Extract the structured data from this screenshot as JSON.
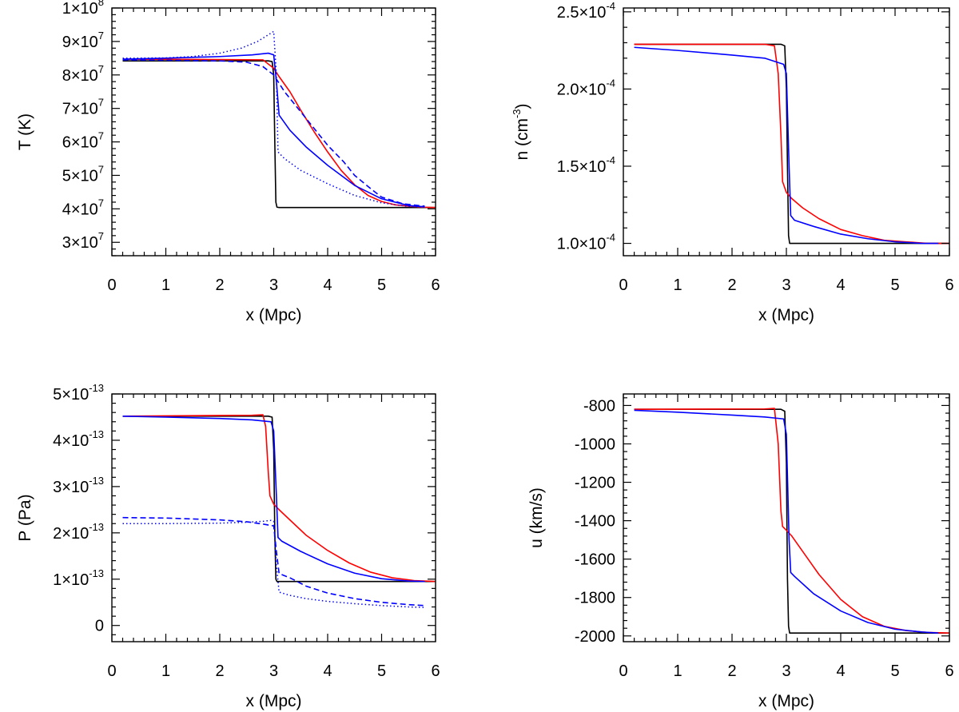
{
  "chart_data": [
    {
      "id": "temperature",
      "type": "line",
      "xlabel": "x (Mpc)",
      "ylabel": "T (K)",
      "xlim": [
        0,
        6
      ],
      "ylim": [
        26000000,
        100000000
      ],
      "xticks": [
        0,
        1,
        2,
        3,
        4,
        5,
        6
      ],
      "yticks": [
        {
          "value": 30000000,
          "mantissa": "3",
          "exp": "7"
        },
        {
          "value": 40000000,
          "mantissa": "4",
          "exp": "7"
        },
        {
          "value": 50000000,
          "mantissa": "5",
          "exp": "7"
        },
        {
          "value": 60000000,
          "mantissa": "6",
          "exp": "7"
        },
        {
          "value": 70000000,
          "mantissa": "7",
          "exp": "7"
        },
        {
          "value": 80000000,
          "mantissa": "8",
          "exp": "7"
        },
        {
          "value": 90000000,
          "mantissa": "9",
          "exp": "7"
        },
        {
          "value": 100000000,
          "mantissa": "1",
          "exp": "8"
        }
      ],
      "series": [
        {
          "name": "black solid",
          "color": "#000000",
          "style": "solid",
          "x": [
            0.2,
            2.9,
            2.97,
            3.0,
            3.02,
            3.04,
            3.06,
            3.1,
            6.0
          ],
          "y": [
            84200000,
            84200000,
            84000000,
            80000000,
            60000000,
            42000000,
            40500000,
            40400000,
            40400000
          ]
        },
        {
          "name": "red solid",
          "color": "#ff0000",
          "style": "solid",
          "x": [
            0.2,
            2.0,
            2.8,
            3.0,
            3.1,
            3.3,
            3.5,
            3.75,
            4.0,
            4.25,
            4.5,
            4.75,
            5.0,
            5.25,
            5.5,
            5.75,
            6.0
          ],
          "y": [
            84700000,
            84600000,
            84500000,
            82000000,
            79500000,
            75000000,
            69500000,
            63000000,
            57000000,
            51500000,
            47200000,
            44000000,
            42200000,
            41200000,
            40800000,
            40500000,
            40400000
          ]
        },
        {
          "name": "blue solid",
          "color": "#0000ff",
          "style": "solid",
          "x": [
            0.2,
            1.0,
            2.0,
            2.6,
            2.9,
            3.0,
            3.05,
            3.1,
            3.3,
            3.6,
            4.0,
            4.5,
            5.0,
            5.5,
            5.8
          ],
          "y": [
            84700000,
            85000000,
            85500000,
            86000000,
            86500000,
            86000000,
            78000000,
            68000000,
            63500000,
            58500000,
            53000000,
            47000000,
            43000000,
            41000000,
            40600000
          ]
        },
        {
          "name": "blue dashed",
          "color": "#0000ff",
          "style": "dashed",
          "x": [
            0.2,
            1.0,
            2.0,
            2.5,
            2.8,
            3.0,
            3.2,
            3.5,
            3.8,
            4.0,
            4.3,
            4.5,
            4.8,
            5.0,
            5.4,
            5.8
          ],
          "y": [
            84500000,
            84400000,
            84200000,
            83800000,
            82500000,
            80000000,
            75000000,
            69000000,
            63000000,
            59000000,
            54000000,
            50000000,
            46000000,
            43500000,
            41500000,
            40800000
          ]
        },
        {
          "name": "blue dotted",
          "color": "#0000ff",
          "style": "dotted",
          "x": [
            0.2,
            1.0,
            1.5,
            2.0,
            2.4,
            2.7,
            2.9,
            3.0,
            3.05,
            3.08,
            3.2,
            3.5,
            4.0,
            4.5,
            5.0,
            5.5,
            5.8
          ],
          "y": [
            85000000,
            85100000,
            85500000,
            86500000,
            88000000,
            90000000,
            92000000,
            93000000,
            80000000,
            57000000,
            55000000,
            51500000,
            47500000,
            44000000,
            41800000,
            40700000,
            40500000
          ]
        }
      ]
    },
    {
      "id": "density",
      "type": "line",
      "xlabel": "x (Mpc)",
      "ylabel": "n (cm",
      "ylabel_exp": "-3",
      "ylabel_close": ")",
      "xlim": [
        0,
        6
      ],
      "ylim": [
        9.2e-05,
        0.0002525
      ],
      "xticks": [
        0,
        1,
        2,
        3,
        4,
        5,
        6
      ],
      "yticks": [
        {
          "value": 0.0001,
          "mantissa": "1.0",
          "exp": "-4"
        },
        {
          "value": 0.00015,
          "mantissa": "1.5",
          "exp": "-4"
        },
        {
          "value": 0.0002,
          "mantissa": "2.0",
          "exp": "-4"
        },
        {
          "value": 0.00025,
          "mantissa": "2.5",
          "exp": "-4"
        }
      ],
      "series": [
        {
          "name": "black solid",
          "color": "#000000",
          "style": "solid",
          "x": [
            0.2,
            2.9,
            2.97,
            3.0,
            3.02,
            3.04,
            3.06,
            3.1,
            6.0
          ],
          "y": [
            0.000229,
            0.000229,
            0.000228,
            0.0002,
            0.00015,
            0.000105,
            0.0001,
            0.0001,
            0.0001
          ]
        },
        {
          "name": "red solid",
          "color": "#ff0000",
          "style": "solid",
          "x": [
            0.2,
            2.6,
            2.78,
            2.85,
            2.9,
            2.93,
            3.0,
            3.1,
            3.3,
            3.6,
            4.0,
            4.4,
            4.8,
            5.2,
            5.6,
            6.0
          ],
          "y": [
            0.000229,
            0.000229,
            0.000228,
            0.00021,
            0.00017,
            0.00014,
            0.000133,
            0.000129,
            0.000123,
            0.000116,
            0.000109,
            0.000105,
            0.000102,
            0.000101,
            0.0001,
            0.0001
          ]
        },
        {
          "name": "blue solid",
          "color": "#0000ff",
          "style": "solid",
          "x": [
            0.2,
            1.0,
            2.0,
            2.6,
            2.95,
            3.0,
            3.05,
            3.08,
            3.15,
            3.5,
            4.0,
            4.5,
            5.0,
            5.5,
            5.8
          ],
          "y": [
            0.000227,
            0.000225,
            0.000222,
            0.00022,
            0.000216,
            0.00021,
            0.00015,
            0.000118,
            0.000115,
            0.000111,
            0.000106,
            0.000103,
            0.000101,
            0.0001,
            0.0001
          ]
        }
      ]
    },
    {
      "id": "pressure",
      "type": "line",
      "xlabel": "x (Mpc)",
      "ylabel": "P (Pa)",
      "xlim": [
        0,
        6
      ],
      "ylim": [
        -3.5e-14,
        5e-13
      ],
      "xticks": [
        0,
        1,
        2,
        3,
        4,
        5,
        6
      ],
      "yticks": [
        {
          "value": 0,
          "mantissa": "0",
          "exp": ""
        },
        {
          "value": 1e-13,
          "mantissa": "1",
          "exp": "-13"
        },
        {
          "value": 2e-13,
          "mantissa": "2",
          "exp": "-13"
        },
        {
          "value": 3e-13,
          "mantissa": "3",
          "exp": "-13"
        },
        {
          "value": 4e-13,
          "mantissa": "4",
          "exp": "-13"
        },
        {
          "value": 5e-13,
          "mantissa": "5",
          "exp": "-13"
        }
      ],
      "series": [
        {
          "name": "black solid",
          "color": "#000000",
          "style": "solid",
          "x": [
            0.2,
            2.9,
            2.97,
            3.0,
            3.02,
            3.04,
            3.06,
            3.1,
            6.0
          ],
          "y": [
            4.52e-13,
            4.52e-13,
            4.5e-13,
            3.8e-13,
            2e-13,
            1e-13,
            9.5e-14,
            9.5e-14,
            9.5e-14
          ]
        },
        {
          "name": "red solid",
          "color": "#ff0000",
          "style": "solid",
          "x": [
            0.2,
            2.6,
            2.8,
            2.85,
            2.9,
            2.93,
            3.0,
            3.1,
            3.3,
            3.6,
            4.0,
            4.4,
            4.8,
            5.2,
            5.6,
            6.0
          ],
          "y": [
            4.52e-13,
            4.54e-13,
            4.55e-13,
            4.3e-13,
            3.3e-13,
            2.8e-13,
            2.62e-13,
            2.5e-13,
            2.28e-13,
            1.95e-13,
            1.62e-13,
            1.35e-13,
            1.15e-13,
            1.03e-13,
            9.7e-14,
            9.5e-14
          ]
        },
        {
          "name": "blue solid",
          "color": "#0000ff",
          "style": "solid",
          "x": [
            0.2,
            1.0,
            2.0,
            2.6,
            2.95,
            3.0,
            3.05,
            3.08,
            3.15,
            3.5,
            4.0,
            4.5,
            5.0,
            5.5,
            5.8
          ],
          "y": [
            4.52e-13,
            4.5e-13,
            4.47e-13,
            4.44e-13,
            4.4e-13,
            4.2e-13,
            2.8e-13,
            1.9e-13,
            1.82e-13,
            1.6e-13,
            1.33e-13,
            1.13e-13,
            1.01e-13,
            9.6e-14,
            9.5e-14
          ]
        },
        {
          "name": "blue dashed",
          "color": "#0000ff",
          "style": "dashed",
          "x": [
            0.2,
            1.0,
            2.0,
            2.5,
            2.8,
            3.0,
            3.05,
            3.1,
            3.3,
            3.6,
            4.0,
            4.5,
            5.0,
            5.5,
            5.8
          ],
          "y": [
            2.33e-13,
            2.32e-13,
            2.28e-13,
            2.24e-13,
            2.19e-13,
            2.15e-13,
            1.6e-13,
            1.12e-13,
            1.03e-13,
            8.5e-14,
            7e-14,
            5.8e-14,
            5e-14,
            4.5e-14,
            4.3e-14
          ]
        },
        {
          "name": "blue dotted",
          "color": "#0000ff",
          "style": "dotted",
          "x": [
            0.2,
            1.0,
            2.0,
            2.5,
            2.8,
            2.95,
            3.0,
            3.05,
            3.1,
            3.3,
            3.6,
            4.0,
            4.5,
            5.0,
            5.5,
            5.8
          ],
          "y": [
            2.2e-13,
            2.2e-13,
            2.21e-13,
            2.23e-13,
            2.25e-13,
            2.27e-13,
            2.25e-13,
            1.3e-13,
            7.2e-14,
            6.5e-14,
            5.8e-14,
            5.2e-14,
            4.7e-14,
            4.3e-14,
            4e-14,
            3.9e-14
          ]
        }
      ]
    },
    {
      "id": "velocity",
      "type": "line",
      "xlabel": "x (Mpc)",
      "ylabel": "u (km/s)",
      "xlim": [
        0,
        6
      ],
      "ylim": [
        -2030,
        -740
      ],
      "xticks": [
        0,
        1,
        2,
        3,
        4,
        5,
        6
      ],
      "yticks": [
        {
          "value": -2000,
          "mantissa": "-2000",
          "exp": ""
        },
        {
          "value": -1800,
          "mantissa": "-1800",
          "exp": ""
        },
        {
          "value": -1600,
          "mantissa": "-1600",
          "exp": ""
        },
        {
          "value": -1400,
          "mantissa": "-1400",
          "exp": ""
        },
        {
          "value": -1200,
          "mantissa": "-1200",
          "exp": ""
        },
        {
          "value": -1000,
          "mantissa": "-1000",
          "exp": ""
        },
        {
          "value": -800,
          "mantissa": "-800",
          "exp": ""
        }
      ],
      "series": [
        {
          "name": "black solid",
          "color": "#000000",
          "style": "solid",
          "x": [
            0.2,
            2.9,
            2.97,
            3.0,
            3.02,
            3.04,
            3.06,
            3.1,
            6.0
          ],
          "y": [
            -820,
            -820,
            -830,
            -1100,
            -1700,
            -1950,
            -1985,
            -1985,
            -1985
          ]
        },
        {
          "name": "red solid",
          "color": "#ff0000",
          "style": "solid",
          "x": [
            0.2,
            2.6,
            2.78,
            2.85,
            2.9,
            2.93,
            3.0,
            3.1,
            3.3,
            3.6,
            4.0,
            4.4,
            4.8,
            5.2,
            5.6,
            6.0
          ],
          "y": [
            -820,
            -818,
            -815,
            -1000,
            -1350,
            -1430,
            -1450,
            -1480,
            -1560,
            -1680,
            -1810,
            -1900,
            -1950,
            -1972,
            -1982,
            -1985
          ]
        },
        {
          "name": "blue solid",
          "color": "#0000ff",
          "style": "solid",
          "x": [
            0.2,
            1.0,
            2.0,
            2.6,
            2.95,
            3.0,
            3.05,
            3.08,
            3.15,
            3.5,
            4.0,
            4.5,
            5.0,
            5.5,
            5.8
          ],
          "y": [
            -825,
            -835,
            -850,
            -860,
            -870,
            -950,
            -1500,
            -1670,
            -1690,
            -1780,
            -1870,
            -1930,
            -1965,
            -1980,
            -1985
          ]
        }
      ]
    }
  ]
}
